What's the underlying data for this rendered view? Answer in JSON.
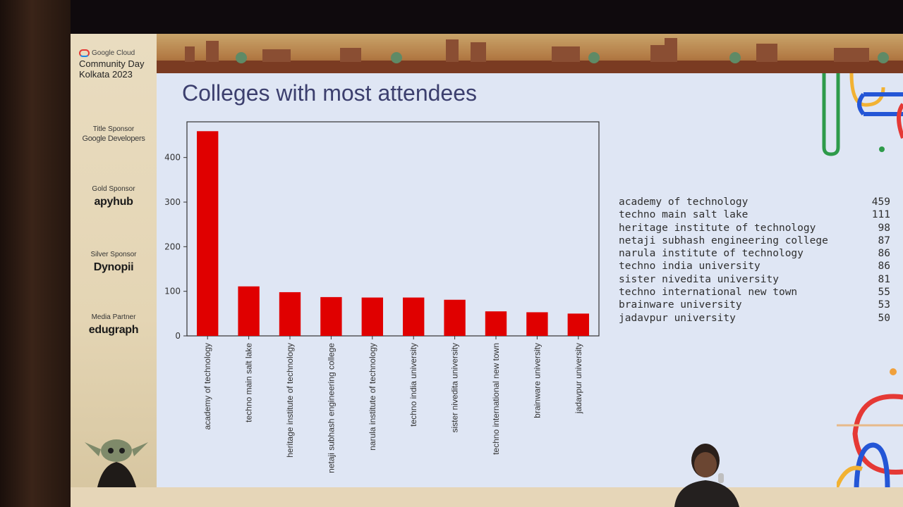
{
  "sidebar": {
    "brand": {
      "cloud": "Google Cloud",
      "event_line1": "Community Day",
      "event_line2": "Kolkata 2023"
    },
    "sponsors": [
      {
        "label": "Title Sponsor",
        "name": "Google Developers"
      },
      {
        "label": "Gold Sponsor",
        "name": "apyhub"
      },
      {
        "label": "Silver Sponsor",
        "name": "Dynopii"
      },
      {
        "label": "Media Partner",
        "name": "edugraph"
      }
    ]
  },
  "slide": {
    "title": "Colleges with most attendees"
  },
  "chart_data": {
    "type": "bar",
    "categories": [
      "academy of technology",
      "techno main salt lake",
      "heritage institute of technology",
      "netaji subhash engineering college",
      "narula institute of technology",
      "techno india university",
      "sister nivedita university",
      "techno international new town",
      "brainware university",
      "jadavpur university"
    ],
    "values": [
      459,
      111,
      98,
      87,
      86,
      86,
      81,
      55,
      53,
      50
    ],
    "bar_color": "#e00000",
    "yticks": [
      "0",
      "100",
      "200",
      "300",
      "400"
    ],
    "ylim": [
      0,
      480
    ],
    "grid": false
  },
  "ranking": [
    {
      "name": "academy of technology",
      "count": "459"
    },
    {
      "name": "techno main salt lake",
      "count": "111"
    },
    {
      "name": "heritage institute of technology",
      "count": "98"
    },
    {
      "name": "netaji subhash engineering college",
      "count": "87"
    },
    {
      "name": "narula institute of technology",
      "count": "86"
    },
    {
      "name": "techno india university",
      "count": "86"
    },
    {
      "name": "sister nivedita university",
      "count": "81"
    },
    {
      "name": "techno international new town",
      "count": "55"
    },
    {
      "name": "brainware university",
      "count": "53"
    },
    {
      "name": "jadavpur university",
      "count": "50"
    }
  ]
}
